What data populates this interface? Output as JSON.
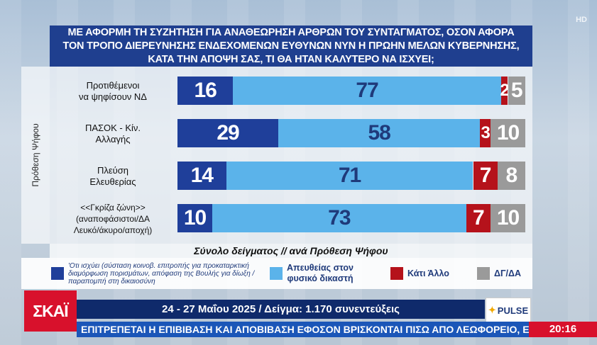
{
  "hd_badge": "HD",
  "title_lines": [
    "ΜΕ ΑΦΟΡΜΗ ΤΗ ΣΥΖΗΤΗΣΗ ΓΙΑ ΑΝΑΘΕΩΡΗΣΗ ΑΡΘΡΩΝ ΤΟΥ ΣΥΝΤΑΓΜΑΤΟΣ, ΟΣΟΝ ΑΦΟΡΑ",
    "ΤΟΝ ΤΡΟΠΟ ΔΙΕΡΕΥΝΗΣΗΣ ΕΝΔΕΧΟΜΕΝΩΝ ΕΥΘΥΝΩΝ ΝΥΝ Η ΠΡΩΗΝ ΜΕΛΩΝ ΚΥΒΕΡΝΗΣΗΣ,",
    "ΚΑΤΑ ΤΗΝ ΑΠΟΨΗ ΣΑΣ, ΤΙ ΘΑ ΗΤΑΝ ΚΑΛΥΤΕΡΟ ΝΑ ΙΣΧΥΕΙ;"
  ],
  "side_label": "Πρόθεση Ψήφου",
  "footer_title": "Σύνολο δείγματος // ανά Πρόθεση Ψήφου",
  "colors": {
    "committee": "#1f3f9a",
    "direct": "#5bb3ea",
    "other": "#b5121b",
    "dk": "#9a9a9a"
  },
  "legend": {
    "committee": "'Οτι ισχύει (σύσταση κοινοβ. επιτροπής για προκαταρκτική διαμόρφωση πορισμάτων, απόφαση της Βουλής για δίωξη / παραπομπή στη δικαιοσύνη",
    "direct_line1": "Απευθείας στον",
    "direct_line2": "φυσικό δικαστή",
    "other": "Κάτι Άλλο",
    "dk": "ΔΓ/ΔΑ"
  },
  "chart_data": {
    "type": "bar",
    "stacked": true,
    "orientation": "horizontal",
    "categories": [
      [
        "Προτιθέμενοι",
        "να ψηφίσουν ΝΔ"
      ],
      [
        "ΠΑΣΟΚ - Κίν.",
        "Αλλαγής"
      ],
      [
        "Πλεύση",
        "Ελευθερίας"
      ],
      [
        "<<Γκρίζα ζώνη>>",
        "(αναποφάσιστοι/ΔΑ",
        "Λευκό/άκυρο/αποχή)"
      ]
    ],
    "series": [
      {
        "name": "'Οτι ισχύει (σύσταση κοινοβ. επιτροπής για προκαταρκτική διαμόρφωση πορισμάτων, απόφαση της Βουλής για δίωξη / παραπομπή στη δικαιοσύνη",
        "key": "committee",
        "values": [
          16,
          29,
          14,
          10
        ]
      },
      {
        "name": "Απευθείας στον φυσικό δικαστή",
        "key": "direct",
        "values": [
          77,
          58,
          71,
          73
        ]
      },
      {
        "name": "Κάτι Άλλο",
        "key": "other",
        "values": [
          2,
          3,
          7,
          7
        ]
      },
      {
        "name": "ΔΓ/ΔΑ",
        "key": "dk",
        "values": [
          5,
          10,
          8,
          10
        ]
      }
    ],
    "xlim": [
      0,
      100
    ]
  },
  "logo": "ΣΚΑΪ",
  "date_sample": "24 - 27 Μαΐου 2025 / Δείγμα: 1.170 συνεντεύξεις",
  "pulse_logo": "PULSE",
  "ticker": "ΕΠΙΤΡΕΠΕΤΑΙ Η ΕΠΙΒΙΒΑΣΗ ΚΑΙ ΑΠΟΒΙΒΑΣΗ ΕΦΟΣΟΝ ΒΡΙΣΚΟΝΤΑΙ ΠΙΣΩ ΑΠΟ ΛΕΩΦΟΡΕΙΟ, ΕΝ",
  "clock": "20:16"
}
